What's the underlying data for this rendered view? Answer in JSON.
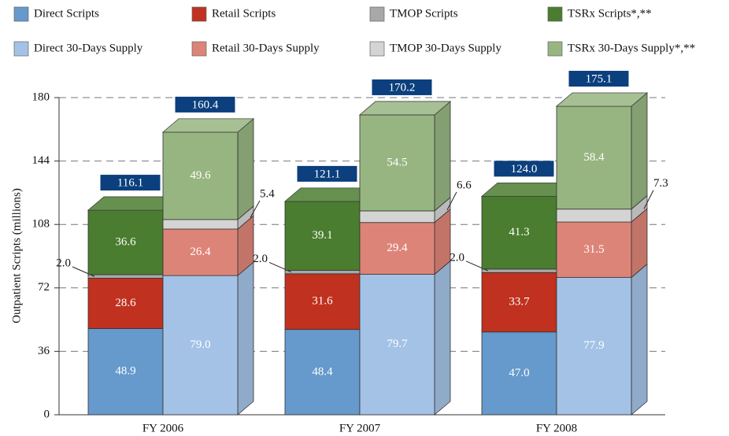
{
  "chart_data": {
    "type": "stacked-bar-3d",
    "ylabel": "Outpatient Scripts (millions)",
    "categories": [
      "FY 2006",
      "FY 2007",
      "FY 2008"
    ],
    "ylim": [
      0,
      180
    ],
    "yticks": [
      0,
      36,
      72,
      108,
      144,
      180
    ],
    "grid": true,
    "stacks": [
      {
        "series": [
          {
            "name": "Direct Scripts",
            "color": "#6699cc",
            "values": [
              48.9,
              48.4,
              47.0
            ],
            "value_labels": [
              "48.9",
              "48.4",
              "47.0"
            ]
          },
          {
            "name": "Retail Scripts",
            "color": "#c0311f",
            "values": [
              28.6,
              31.6,
              33.7
            ],
            "value_labels": [
              "28.6",
              "31.6",
              "33.7"
            ]
          },
          {
            "name": "TMOP Scripts",
            "color": "#a8a8a8",
            "values": [
              2.0,
              2.0,
              2.0
            ],
            "value_labels": [
              "2.0",
              "2.0",
              "2.0"
            ]
          },
          {
            "name": "TSRx Scripts*,**",
            "color": "#4a7d2f",
            "values": [
              36.6,
              39.1,
              41.3
            ],
            "value_labels": [
              "36.6",
              "39.1",
              "41.3"
            ]
          }
        ],
        "totals": [
          116.1,
          121.1,
          124.0
        ],
        "total_labels": [
          "116.1",
          "121.1",
          "124.0"
        ]
      },
      {
        "series": [
          {
            "name": "Direct 30-Days Supply",
            "color": "#a4c2e6",
            "values": [
              79.0,
              79.7,
              77.9
            ],
            "value_labels": [
              "79.0",
              "79.7",
              "77.9"
            ]
          },
          {
            "name": "Retail 30-Days Supply",
            "color": "#dd8478",
            "values": [
              26.4,
              29.4,
              31.5
            ],
            "value_labels": [
              "26.4",
              "29.4",
              "31.5"
            ]
          },
          {
            "name": "TMOP 30-Days Supply",
            "color": "#d4d4d4",
            "values": [
              5.4,
              6.6,
              7.3
            ],
            "value_labels": [
              "5.4",
              "6.6",
              "7.3"
            ]
          },
          {
            "name": "TSRx 30-Days Supply*,**",
            "color": "#97b581",
            "values": [
              49.6,
              54.5,
              58.4
            ],
            "value_labels": [
              "49.6",
              "54.5",
              "58.4"
            ]
          }
        ],
        "totals": [
          160.4,
          170.2,
          175.1
        ],
        "total_labels": [
          "160.4",
          "170.2",
          "175.1"
        ]
      }
    ]
  }
}
